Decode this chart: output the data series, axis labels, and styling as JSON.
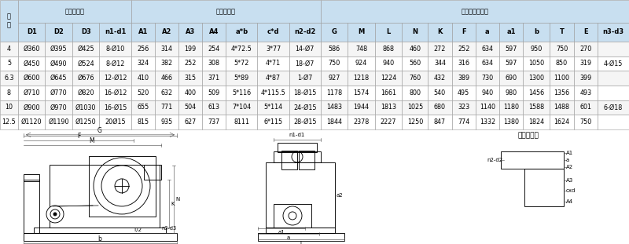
{
  "col_labels": [
    "机\n号",
    "D1",
    "D2",
    "D3",
    "n1-d1",
    "A1",
    "A2",
    "A3",
    "A4",
    "a*b",
    "c*d",
    "n2-d2",
    "G",
    "M",
    "L",
    "N",
    "K",
    "F",
    "a",
    "a1",
    "b",
    "T",
    "E",
    "n3-d3"
  ],
  "col_widths_raw": [
    1.6,
    2.4,
    2.4,
    2.4,
    2.8,
    2.1,
    2.1,
    2.1,
    2.1,
    2.8,
    2.8,
    2.8,
    2.4,
    2.4,
    2.4,
    2.3,
    2.1,
    2.1,
    2.1,
    2.1,
    2.4,
    2.1,
    2.1,
    2.8
  ],
  "header1_groups": [
    {
      "label": "",
      "cols": [
        0,
        0
      ]
    },
    {
      "label": "进风口尺寸",
      "cols": [
        1,
        4
      ]
    },
    {
      "label": "出风口尺寸",
      "cols": [
        5,
        11
      ]
    },
    {
      "label": "外形及安装尺寸",
      "cols": [
        12,
        23
      ]
    }
  ],
  "rows": [
    [
      "4",
      "Ø360",
      "Ø395",
      "Ø425",
      "8-Ø10",
      "256",
      "314",
      "199",
      "254",
      "4*72.5",
      "3*77",
      "14-Ø7",
      "586",
      "748",
      "868",
      "460",
      "272",
      "252",
      "634",
      "597",
      "950",
      "750",
      "270",
      ""
    ],
    [
      "5",
      "Ø450",
      "Ø490",
      "Ø524",
      "8-Ø12",
      "324",
      "382",
      "252",
      "308",
      "5*72",
      "4*71",
      "18-Ø7",
      "750",
      "924",
      "940",
      "560",
      "344",
      "316",
      "634",
      "597",
      "1050",
      "850",
      "319",
      "4-Ø15"
    ],
    [
      "6.3",
      "Ø600",
      "Ø645",
      "Ø676",
      "12-Ø12",
      "410",
      "466",
      "315",
      "371",
      "5*89",
      "4*87",
      "1-Ø7",
      "927",
      "1218",
      "1224",
      "760",
      "432",
      "389",
      "730",
      "690",
      "1300",
      "1100",
      "399",
      ""
    ],
    [
      "8",
      "Ø710",
      "Ø770",
      "Ø820",
      "16-Ø12",
      "520",
      "632",
      "400",
      "509",
      "5*116",
      "4*115.5",
      "18-Ø15",
      "1178",
      "1574",
      "1661",
      "800",
      "540",
      "495",
      "940",
      "980",
      "1456",
      "1356",
      "493",
      ""
    ],
    [
      "10",
      "Ø900",
      "Ø970",
      "Ø1030",
      "16-Ø15",
      "655",
      "771",
      "504",
      "613",
      "7*104",
      "5*114",
      "24-Ø15",
      "1483",
      "1944",
      "1813",
      "1025",
      "680",
      "323",
      "1140",
      "1180",
      "1588",
      "1488",
      "601",
      "6-Ø18"
    ],
    [
      "12.5",
      "Ø1120",
      "Ø1190",
      "Ø1250",
      "20Ø15",
      "815",
      "935",
      "627",
      "737",
      "8111",
      "6*115",
      "28-Ø15",
      "1844",
      "2378",
      "2227",
      "1250",
      "847",
      "774",
      "1332",
      "1380",
      "1824",
      "1624",
      "750",
      ""
    ]
  ],
  "header_bg": "#c8dff0",
  "row_bg_even": "#f5f5f5",
  "row_bg_odd": "#ffffff",
  "border_color": "#999999",
  "font_size_header": 6.0,
  "font_size_data": 5.8
}
